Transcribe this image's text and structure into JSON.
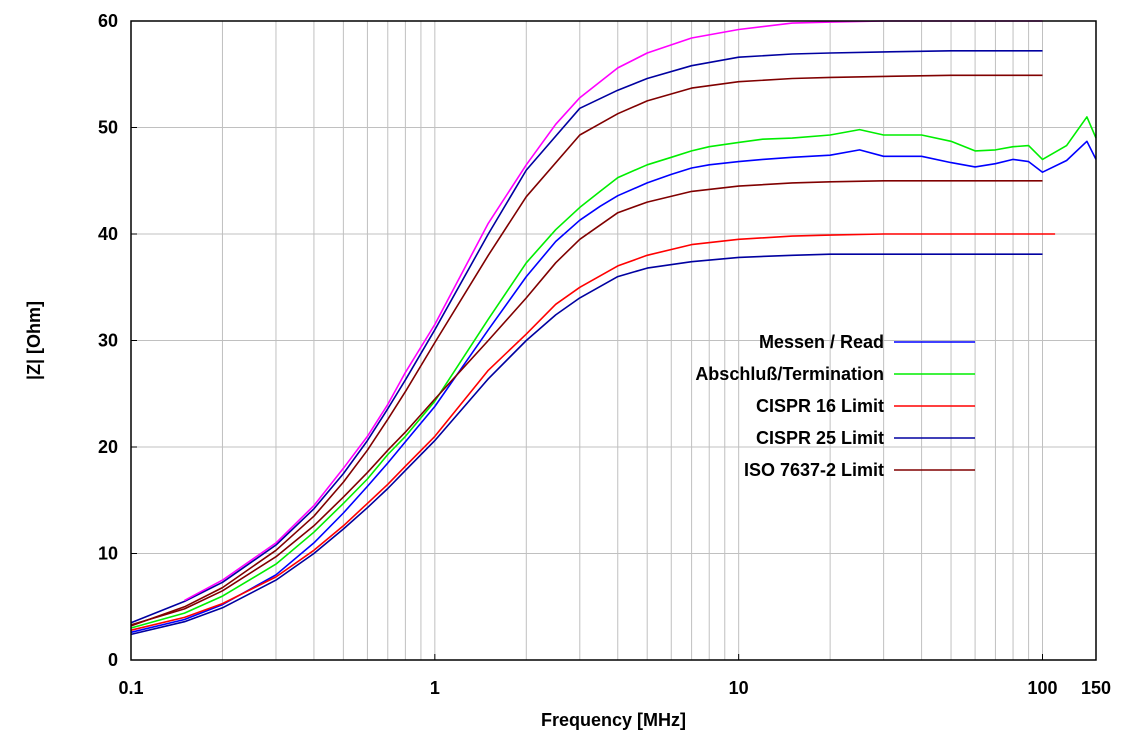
{
  "chart_data": {
    "type": "line",
    "xlabel": "Frequency [MHz]",
    "ylabel": "|Z| [Ohm]",
    "x_scale": "log",
    "xlim": [
      0.1,
      150
    ],
    "ylim": [
      0,
      60
    ],
    "x_ticks": [
      {
        "value": 0.1,
        "label": "0.1"
      },
      {
        "value": 1,
        "label": "1"
      },
      {
        "value": 10,
        "label": "10"
      },
      {
        "value": 100,
        "label": "100"
      },
      {
        "value": 150,
        "label": "150"
      }
    ],
    "y_ticks": [
      0,
      10,
      20,
      30,
      40,
      50,
      60
    ],
    "grid": true,
    "legend_position": "right-middle",
    "series": [
      {
        "name": "Messen / Read",
        "color": "#0000ff",
        "x": [
          0.1,
          0.15,
          0.2,
          0.3,
          0.4,
          0.5,
          0.6,
          0.7,
          0.8,
          1,
          1.5,
          2,
          2.5,
          3,
          3.5,
          4,
          5,
          6,
          7,
          8,
          10,
          12,
          15,
          20,
          25,
          30,
          40,
          50,
          60,
          70,
          80,
          90,
          100,
          120,
          140,
          150
        ],
        "y": [
          2.6,
          3.8,
          5.2,
          8.0,
          11.0,
          13.8,
          16.3,
          18.5,
          20.5,
          23.8,
          31.0,
          36.0,
          39.3,
          41.3,
          42.6,
          43.6,
          44.8,
          45.6,
          46.2,
          46.5,
          46.8,
          47.0,
          47.2,
          47.4,
          47.9,
          47.3,
          47.3,
          46.7,
          46.3,
          46.6,
          47.0,
          46.8,
          45.8,
          46.9,
          48.7,
          47.0
        ]
      },
      {
        "name": "Abschluß/Termination",
        "color": "#00ee00",
        "x": [
          0.1,
          0.15,
          0.2,
          0.3,
          0.4,
          0.5,
          0.6,
          0.7,
          0.8,
          1,
          1.5,
          2,
          2.5,
          3,
          3.5,
          4,
          5,
          6,
          7,
          8,
          10,
          12,
          15,
          20,
          25,
          30,
          40,
          50,
          60,
          70,
          80,
          90,
          100,
          120,
          140,
          150
        ],
        "y": [
          3.0,
          4.4,
          6.0,
          9.0,
          12.0,
          14.7,
          17.0,
          19.3,
          21.0,
          24.3,
          32.0,
          37.3,
          40.4,
          42.5,
          44.0,
          45.3,
          46.5,
          47.2,
          47.8,
          48.2,
          48.6,
          48.9,
          49.0,
          49.3,
          49.8,
          49.3,
          49.3,
          48.7,
          47.8,
          47.9,
          48.2,
          48.3,
          47.0,
          48.3,
          51.0,
          49.0
        ]
      },
      {
        "name": "CISPR 16 Limit",
        "color": "#ff0000",
        "x": [
          0.1,
          0.15,
          0.2,
          0.3,
          0.4,
          0.5,
          0.6,
          0.7,
          0.8,
          1,
          1.5,
          2,
          2.5,
          3,
          4,
          5,
          7,
          10,
          15,
          20,
          30,
          50,
          70,
          100,
          110
        ],
        "y": [
          2.8,
          4.0,
          5.3,
          7.8,
          10.3,
          12.6,
          14.7,
          16.5,
          18.2,
          21.0,
          27.2,
          30.6,
          33.4,
          35.0,
          37.0,
          38.0,
          39.0,
          39.5,
          39.8,
          39.9,
          40.0,
          40.0,
          40.0,
          40.0,
          40.0
        ]
      },
      {
        "name": "CISPR 25 Limit",
        "color": "#0000a0",
        "x": [
          0.1,
          0.15,
          0.2,
          0.3,
          0.4,
          0.5,
          0.6,
          0.7,
          0.8,
          1,
          1.5,
          2,
          2.5,
          3,
          4,
          5,
          7,
          10,
          15,
          20,
          30,
          50,
          70,
          100
        ],
        "y": [
          2.4,
          3.6,
          4.9,
          7.5,
          10.0,
          12.3,
          14.3,
          16.1,
          17.8,
          20.6,
          26.4,
          30.0,
          32.4,
          34.0,
          36.0,
          36.8,
          37.4,
          37.8,
          38.0,
          38.1,
          38.1,
          38.1,
          38.1,
          38.1
        ]
      },
      {
        "name": "ISO 7637-2 Limit",
        "color": "#800000",
        "x": [
          0.1,
          0.15,
          0.2,
          0.3,
          0.4,
          0.5,
          0.6,
          0.7,
          0.8,
          1,
          1.5,
          2,
          2.5,
          3,
          4,
          5,
          7,
          10,
          15,
          20,
          30,
          50,
          70,
          100
        ],
        "y": [
          3.3,
          4.8,
          6.5,
          9.7,
          12.6,
          15.3,
          17.6,
          19.7,
          21.4,
          24.5,
          30.0,
          34.0,
          37.3,
          39.5,
          42.0,
          43.0,
          44.0,
          44.5,
          44.8,
          44.9,
          45.0,
          45.0,
          45.0,
          45.0
        ]
      },
      {
        "color": "#0000a0",
        "x": [
          0.1,
          0.15,
          0.2,
          0.3,
          0.4,
          0.5,
          0.6,
          0.7,
          0.8,
          1,
          1.5,
          2,
          3,
          4,
          5,
          7,
          10,
          15,
          20,
          30,
          50,
          70,
          100
        ],
        "y": [
          3.5,
          5.5,
          7.3,
          10.8,
          14.2,
          17.5,
          20.6,
          23.6,
          26.3,
          31.0,
          40.0,
          46.0,
          51.8,
          53.5,
          54.6,
          55.8,
          56.6,
          56.9,
          57.0,
          57.1,
          57.2,
          57.2,
          57.2
        ]
      },
      {
        "color": "#800000",
        "x": [
          0.1,
          0.15,
          0.2,
          0.3,
          0.4,
          0.5,
          0.6,
          0.7,
          0.8,
          1,
          1.5,
          2,
          3,
          4,
          5,
          7,
          10,
          15,
          20,
          30,
          50,
          70,
          100
        ],
        "y": [
          3.2,
          5.0,
          6.8,
          10.3,
          13.5,
          16.7,
          19.7,
          22.6,
          25.2,
          29.8,
          38.0,
          43.5,
          49.3,
          51.3,
          52.5,
          53.7,
          54.3,
          54.6,
          54.7,
          54.8,
          54.9,
          54.9,
          54.9
        ]
      },
      {
        "color": "#ff00ff",
        "x": [
          0.15,
          0.2,
          0.3,
          0.4,
          0.5,
          0.6,
          0.7,
          0.8,
          1,
          1.5,
          2,
          2.5,
          3,
          4,
          5,
          7,
          10,
          15,
          20,
          30,
          50,
          70,
          100
        ],
        "y": [
          5.6,
          7.5,
          11.0,
          14.5,
          18.0,
          21.0,
          24.0,
          27.0,
          31.5,
          41.0,
          46.5,
          50.3,
          52.8,
          55.6,
          57.0,
          58.4,
          59.2,
          59.8,
          59.9,
          60.0,
          60.0,
          60.0,
          60.0
        ]
      }
    ]
  }
}
